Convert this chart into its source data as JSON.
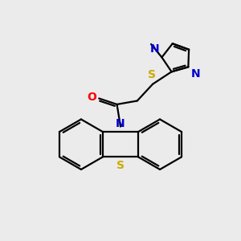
{
  "bg_color": "#ebebeb",
  "bond_color": "#000000",
  "N_color": "#0000cc",
  "O_color": "#ff0000",
  "S_color": "#ccaa00",
  "line_width": 1.6,
  "fig_w": 3.0,
  "fig_h": 3.0,
  "dpi": 100,
  "xlim": [
    0,
    10
  ],
  "ylim": [
    0,
    10
  ]
}
